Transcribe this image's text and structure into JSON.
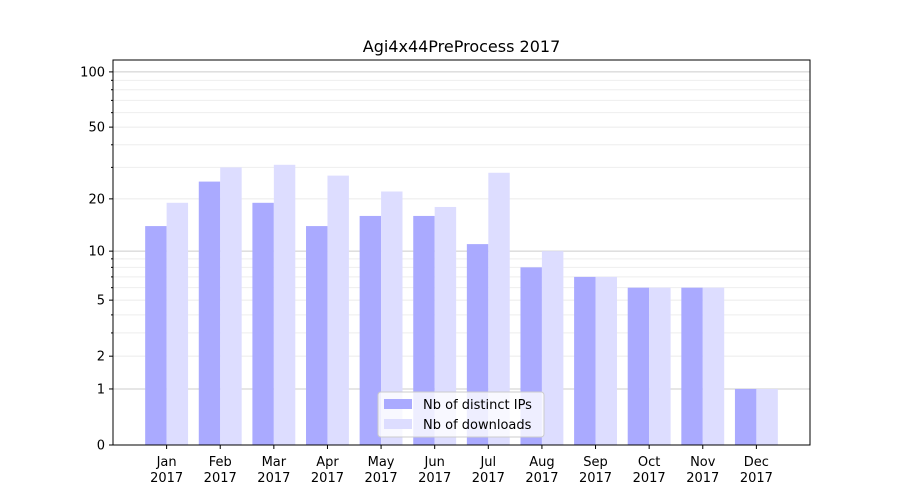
{
  "chart_data": {
    "type": "bar",
    "title": "Agi4x44PreProcess 2017",
    "xlabel": "",
    "ylabel": "",
    "y_scale": "symlog",
    "ylim": [
      0,
      116
    ],
    "y_ticks": [
      0,
      1,
      2,
      5,
      10,
      20,
      50,
      100
    ],
    "y_minor_ticks": [
      3,
      4,
      6,
      7,
      8,
      9,
      30,
      40,
      60,
      70,
      80,
      90
    ],
    "grid": true,
    "legend_position": "lower center",
    "categories": [
      "Jan\n2017",
      "Feb\n2017",
      "Mar\n2017",
      "Apr\n2017",
      "May\n2017",
      "Jun\n2017",
      "Jul\n2017",
      "Aug\n2017",
      "Sep\n2017",
      "Oct\n2017",
      "Nov\n2017",
      "Dec\n2017"
    ],
    "series": [
      {
        "name": "Nb of distinct IPs",
        "color": "#aaaaff",
        "values": [
          14,
          25,
          19,
          14,
          16,
          16,
          11,
          8,
          7,
          6,
          6,
          1
        ]
      },
      {
        "name": "Nb of downloads",
        "color": "#ddddff",
        "values": [
          19,
          30,
          31,
          27,
          22,
          18,
          28,
          10,
          7,
          6,
          6,
          1
        ]
      }
    ]
  }
}
